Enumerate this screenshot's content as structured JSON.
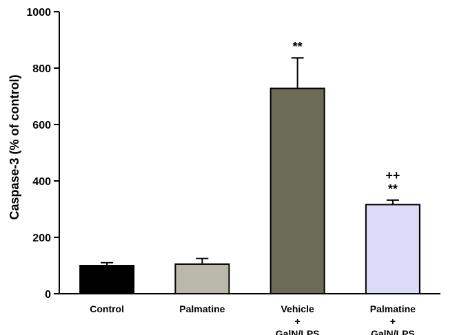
{
  "chart_data": {
    "type": "bar",
    "categories": [
      [
        "Control"
      ],
      [
        "Palmatine"
      ],
      [
        "Vehicle",
        "+",
        "GalN/LPS"
      ],
      [
        "Palmatine",
        "+",
        "GalN/LPS"
      ]
    ],
    "values": [
      100,
      105,
      728,
      316
    ],
    "errors": [
      10,
      20,
      108,
      16
    ],
    "annotations": [
      [],
      [],
      [
        "**"
      ],
      [
        "++",
        "**"
      ]
    ],
    "bar_colors": [
      "#000000",
      "#b9b8aa",
      "#6b6b57",
      "#dcdcfa"
    ],
    "title": "",
    "xlabel": "",
    "ylabel": "Caspase-3 (% of control)",
    "ylim": [
      0,
      1000
    ],
    "yticks": [
      0,
      200,
      400,
      600,
      800,
      1000
    ],
    "grid": false,
    "legend": "none"
  }
}
